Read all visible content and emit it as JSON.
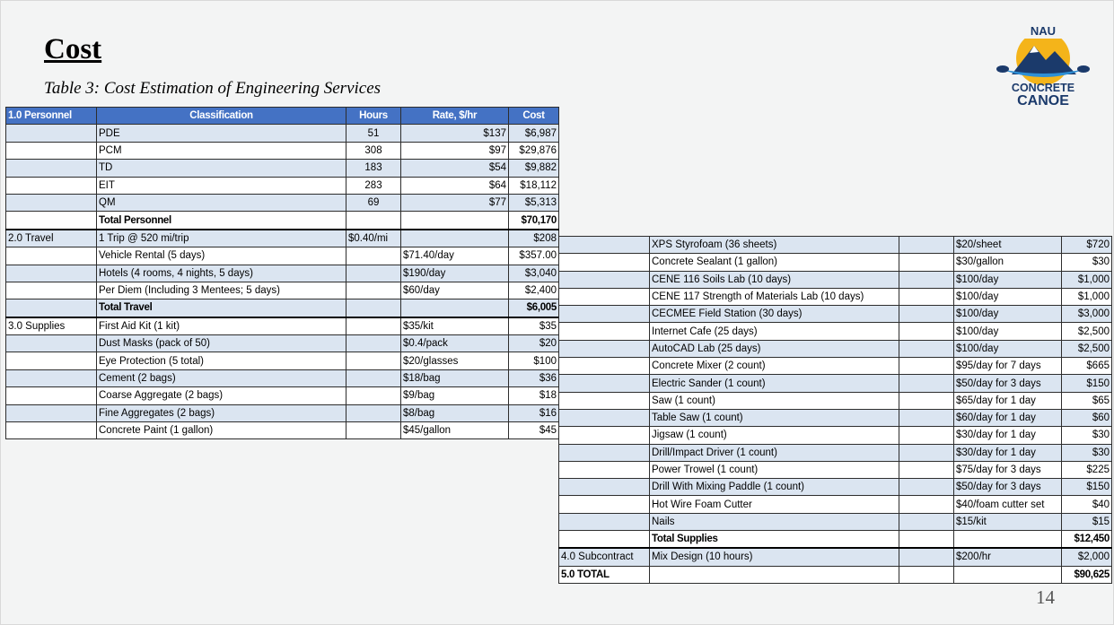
{
  "slide": {
    "title": "Cost",
    "subtitle": "Table 3: Cost Estimation of Engineering Services",
    "page_number": "14",
    "logo": {
      "text_top": "NAU",
      "text_mid": "CONCRETE",
      "text_bottom": "CANOE",
      "colors": {
        "sun": "#f4b41a",
        "mountain": "#1b3a6b",
        "water": "#2d8fd5"
      }
    }
  },
  "table_left": {
    "headers": [
      "1.0 Personnel",
      "Classification",
      "Hours",
      "Rate, $/hr",
      "Cost"
    ],
    "rows": [
      [
        "",
        "PDE",
        "51",
        "$137",
        "$6,987"
      ],
      [
        "",
        "PCM",
        "308",
        "$97",
        "$29,876"
      ],
      [
        "",
        "TD",
        "183",
        "$54",
        "$9,882"
      ],
      [
        "",
        "EIT",
        "283",
        "$64",
        "$18,112"
      ],
      [
        "",
        "QM",
        "69",
        "$77",
        "$5,313"
      ],
      [
        "",
        "Total Personnel",
        "",
        "",
        "$70,170"
      ],
      [
        "2.0 Travel",
        "1 Trip @ 520 mi/trip",
        "$0.40/mi",
        "",
        "$208"
      ],
      [
        "",
        "Vehicle Rental (5 days)",
        "",
        "$71.40/day",
        "$357.00"
      ],
      [
        "",
        "Hotels (4 rooms, 4 nights, 5 days)",
        "",
        "$190/day",
        "$3,040"
      ],
      [
        "",
        "Per Diem (Including 3 Mentees; 5 days)",
        "",
        "$60/day",
        "$2,400"
      ],
      [
        "",
        "Total Travel",
        "",
        "",
        "$6,005"
      ],
      [
        "3.0 Supplies",
        "First Aid Kit (1 kit)",
        "",
        "$35/kit",
        "$35"
      ],
      [
        "",
        "Dust Masks (pack of 50)",
        "",
        "$0.4/pack",
        "$20"
      ],
      [
        "",
        "Eye Protection (5 total)",
        "",
        "$20/glasses",
        "$100"
      ],
      [
        "",
        "Cement (2 bags)",
        "",
        "$18/bag",
        "$36"
      ],
      [
        "",
        "Coarse Aggregate (2 bags)",
        "",
        "$9/bag",
        "$18"
      ],
      [
        "",
        "Fine Aggregates (2 bags)",
        "",
        "$8/bag",
        "$16"
      ],
      [
        "",
        "Concrete Paint (1 gallon)",
        "",
        "$45/gallon",
        "$45"
      ]
    ]
  },
  "table_right": {
    "rows": [
      [
        "",
        "XPS Styrofoam (36 sheets)",
        "",
        "$20/sheet",
        "$720"
      ],
      [
        "",
        "Concrete Sealant (1 gallon)",
        "",
        "$30/gallon",
        "$30"
      ],
      [
        "",
        "CENE 116 Soils Lab (10 days)",
        "",
        "$100/day",
        "$1,000"
      ],
      [
        "",
        "CENE 117 Strength of Materials Lab (10 days)",
        "",
        "$100/day",
        "$1,000"
      ],
      [
        "",
        "CECMEE Field Station (30 days)",
        "",
        "$100/day",
        "$3,000"
      ],
      [
        "",
        "Internet Cafe (25 days)",
        "",
        "$100/day",
        "$2,500"
      ],
      [
        "",
        "AutoCAD Lab (25 days)",
        "",
        "$100/day",
        "$2,500"
      ],
      [
        "",
        "Concrete Mixer (2 count)",
        "",
        "$95/day for 7 days",
        "$665"
      ],
      [
        "",
        "Electric Sander (1 count)",
        "",
        "$50/day for 3 days",
        "$150"
      ],
      [
        "",
        "Saw (1 count)",
        "",
        "$65/day for 1 day",
        "$65"
      ],
      [
        "",
        "Table Saw (1 count)",
        "",
        "$60/day for 1 day",
        "$60"
      ],
      [
        "",
        "Jigsaw (1 count)",
        "",
        "$30/day for 1 day",
        "$30"
      ],
      [
        "",
        "Drill/Impact Driver (1 count)",
        "",
        "$30/day for 1 day",
        "$30"
      ],
      [
        "",
        "Power Trowel (1 count)",
        "",
        "$75/day for 3 days",
        "$225"
      ],
      [
        "",
        "Drill With Mixing Paddle (1 count)",
        "",
        "$50/day for 3 days",
        "$150"
      ],
      [
        "",
        "Hot Wire Foam Cutter",
        "",
        "$40/foam cutter set",
        "$40"
      ],
      [
        "",
        "Nails",
        "",
        "$15/kit",
        "$15"
      ],
      [
        "",
        "Total Supplies",
        "",
        "",
        "$12,450"
      ],
      [
        "4.0 Subcontract",
        "Mix Design (10 hours)",
        "",
        "$200/hr",
        "$2,000"
      ],
      [
        "5.0 TOTAL",
        "",
        "",
        "",
        "$90,625"
      ]
    ]
  }
}
